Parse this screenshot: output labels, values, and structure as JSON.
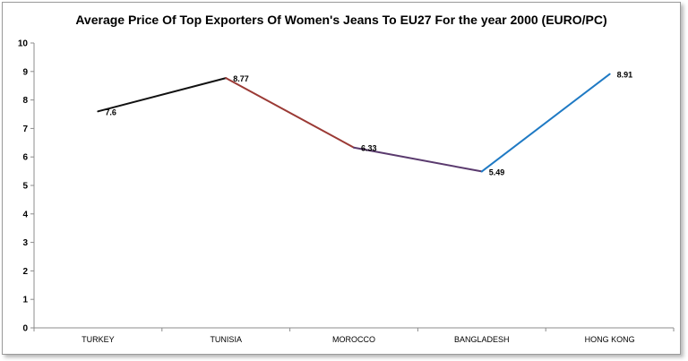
{
  "chart_data": {
    "type": "line",
    "title": "Average Price Of Top Exporters Of Women's Jeans To EU27 For the year 2000 (EURO/PC)",
    "categories": [
      "TURKEY",
      "TUNISIA",
      "MOROCCO",
      "BANGLADESH",
      "HONG KONG"
    ],
    "values": [
      7.6,
      8.77,
      6.33,
      5.49,
      8.91
    ],
    "value_labels": [
      "7.6",
      "8.77",
      "6.33",
      "5.49",
      "8.91"
    ],
    "segment_colors": [
      "#111111",
      "#9b3a35",
      "#5a3a6e",
      "#1f7ac4"
    ],
    "ylim": [
      0,
      10
    ],
    "yticks": [
      "0",
      "1",
      "2",
      "3",
      "4",
      "5",
      "6",
      "7",
      "8",
      "9",
      "10"
    ],
    "xlabel": "",
    "ylabel": "",
    "grid": false,
    "legend": "none"
  }
}
